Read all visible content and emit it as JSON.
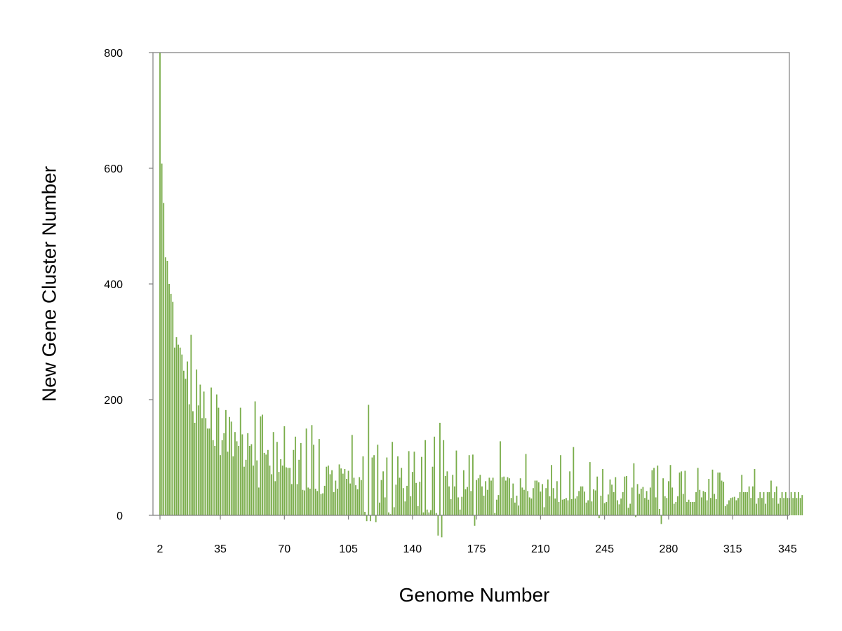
{
  "chart_data": {
    "type": "bar",
    "title": "",
    "xlabel": "Genome Number",
    "ylabel": "New Gene Cluster Number",
    "x_start": 2,
    "x_end": 346,
    "xlim": [
      2,
      346
    ],
    "ylim": [
      -40,
      800
    ],
    "yticks": [
      0,
      200,
      400,
      600,
      800
    ],
    "xticks": [
      2,
      35,
      70,
      105,
      140,
      175,
      210,
      245,
      280,
      315,
      345
    ],
    "grid": false,
    "legend": "none",
    "bar_color": "#7aad4b",
    "values": [
      800,
      608,
      540,
      446,
      440,
      400,
      383,
      369,
      290,
      308,
      295,
      290,
      278,
      250,
      236,
      266,
      192,
      312,
      180,
      160,
      252,
      190,
      226,
      168,
      214,
      168,
      150,
      150,
      221,
      130,
      120,
      209,
      186,
      104,
      130,
      142,
      182,
      110,
      170,
      162,
      102,
      144,
      128,
      120,
      186,
      140,
      84,
      96,
      142,
      120,
      123,
      86,
      197,
      95,
      48,
      171,
      174,
      108,
      105,
      113,
      86,
      71,
      144,
      59,
      127,
      75,
      97,
      86,
      154,
      83,
      82,
      82,
      54,
      113,
      136,
      54,
      96,
      125,
      44,
      43,
      150,
      48,
      46,
      156,
      122,
      46,
      42,
      132,
      37,
      38,
      51,
      84,
      86,
      71,
      78,
      40,
      60,
      46,
      88,
      81,
      72,
      80,
      63,
      77,
      55,
      139,
      65,
      52,
      45,
      66,
      61,
      102,
      6,
      -10,
      191,
      -10,
      100,
      104,
      -12,
      122,
      22,
      61,
      76,
      31,
      100,
      5,
      2,
      127,
      14,
      53,
      102,
      65,
      82,
      47,
      24,
      51,
      111,
      33,
      75,
      110,
      56,
      16,
      58,
      101,
      5,
      130,
      10,
      5,
      9,
      84,
      136,
      4,
      -35,
      160,
      -38,
      130,
      68,
      76,
      50,
      28,
      70,
      50,
      112,
      31,
      10,
      32,
      78,
      45,
      49,
      104,
      42,
      105,
      -18,
      61,
      64,
      70,
      50,
      34,
      59,
      44,
      65,
      60,
      65,
      4,
      27,
      35,
      128,
      66,
      67,
      60,
      66,
      64,
      30,
      55,
      22,
      34,
      17,
      64,
      48,
      44,
      106,
      42,
      31,
      29,
      47,
      60,
      60,
      57,
      41,
      54,
      14,
      47,
      62,
      33,
      87,
      47,
      29,
      59,
      23,
      104,
      27,
      28,
      30,
      26,
      76,
      28,
      118,
      29,
      33,
      42,
      50,
      50,
      41,
      22,
      26,
      92,
      24,
      45,
      43,
      67,
      -5,
      34,
      80,
      21,
      23,
      36,
      62,
      53,
      40,
      66,
      26,
      19,
      29,
      40,
      67,
      68,
      13,
      20,
      48,
      90,
      -3,
      54,
      37,
      46,
      49,
      30,
      42,
      27,
      48,
      78,
      82,
      31,
      86,
      11,
      -15,
      64,
      33,
      30,
      59,
      87,
      48,
      20,
      23,
      33,
      74,
      76,
      37,
      77,
      23,
      27,
      23,
      23,
      23,
      40,
      82,
      44,
      31,
      42,
      40,
      26,
      63,
      30,
      79,
      37,
      28,
      74,
      74,
      60,
      58,
      16,
      19,
      26,
      30,
      31,
      32,
      26,
      30,
      40,
      70,
      40,
      40,
      40,
      50,
      30,
      50,
      80,
      20,
      30,
      40,
      30,
      40,
      20,
      40,
      40,
      60,
      30,
      40,
      50,
      20,
      30,
      40,
      30,
      40,
      30,
      30,
      40,
      30,
      40,
      30,
      40,
      30,
      35
    ]
  }
}
